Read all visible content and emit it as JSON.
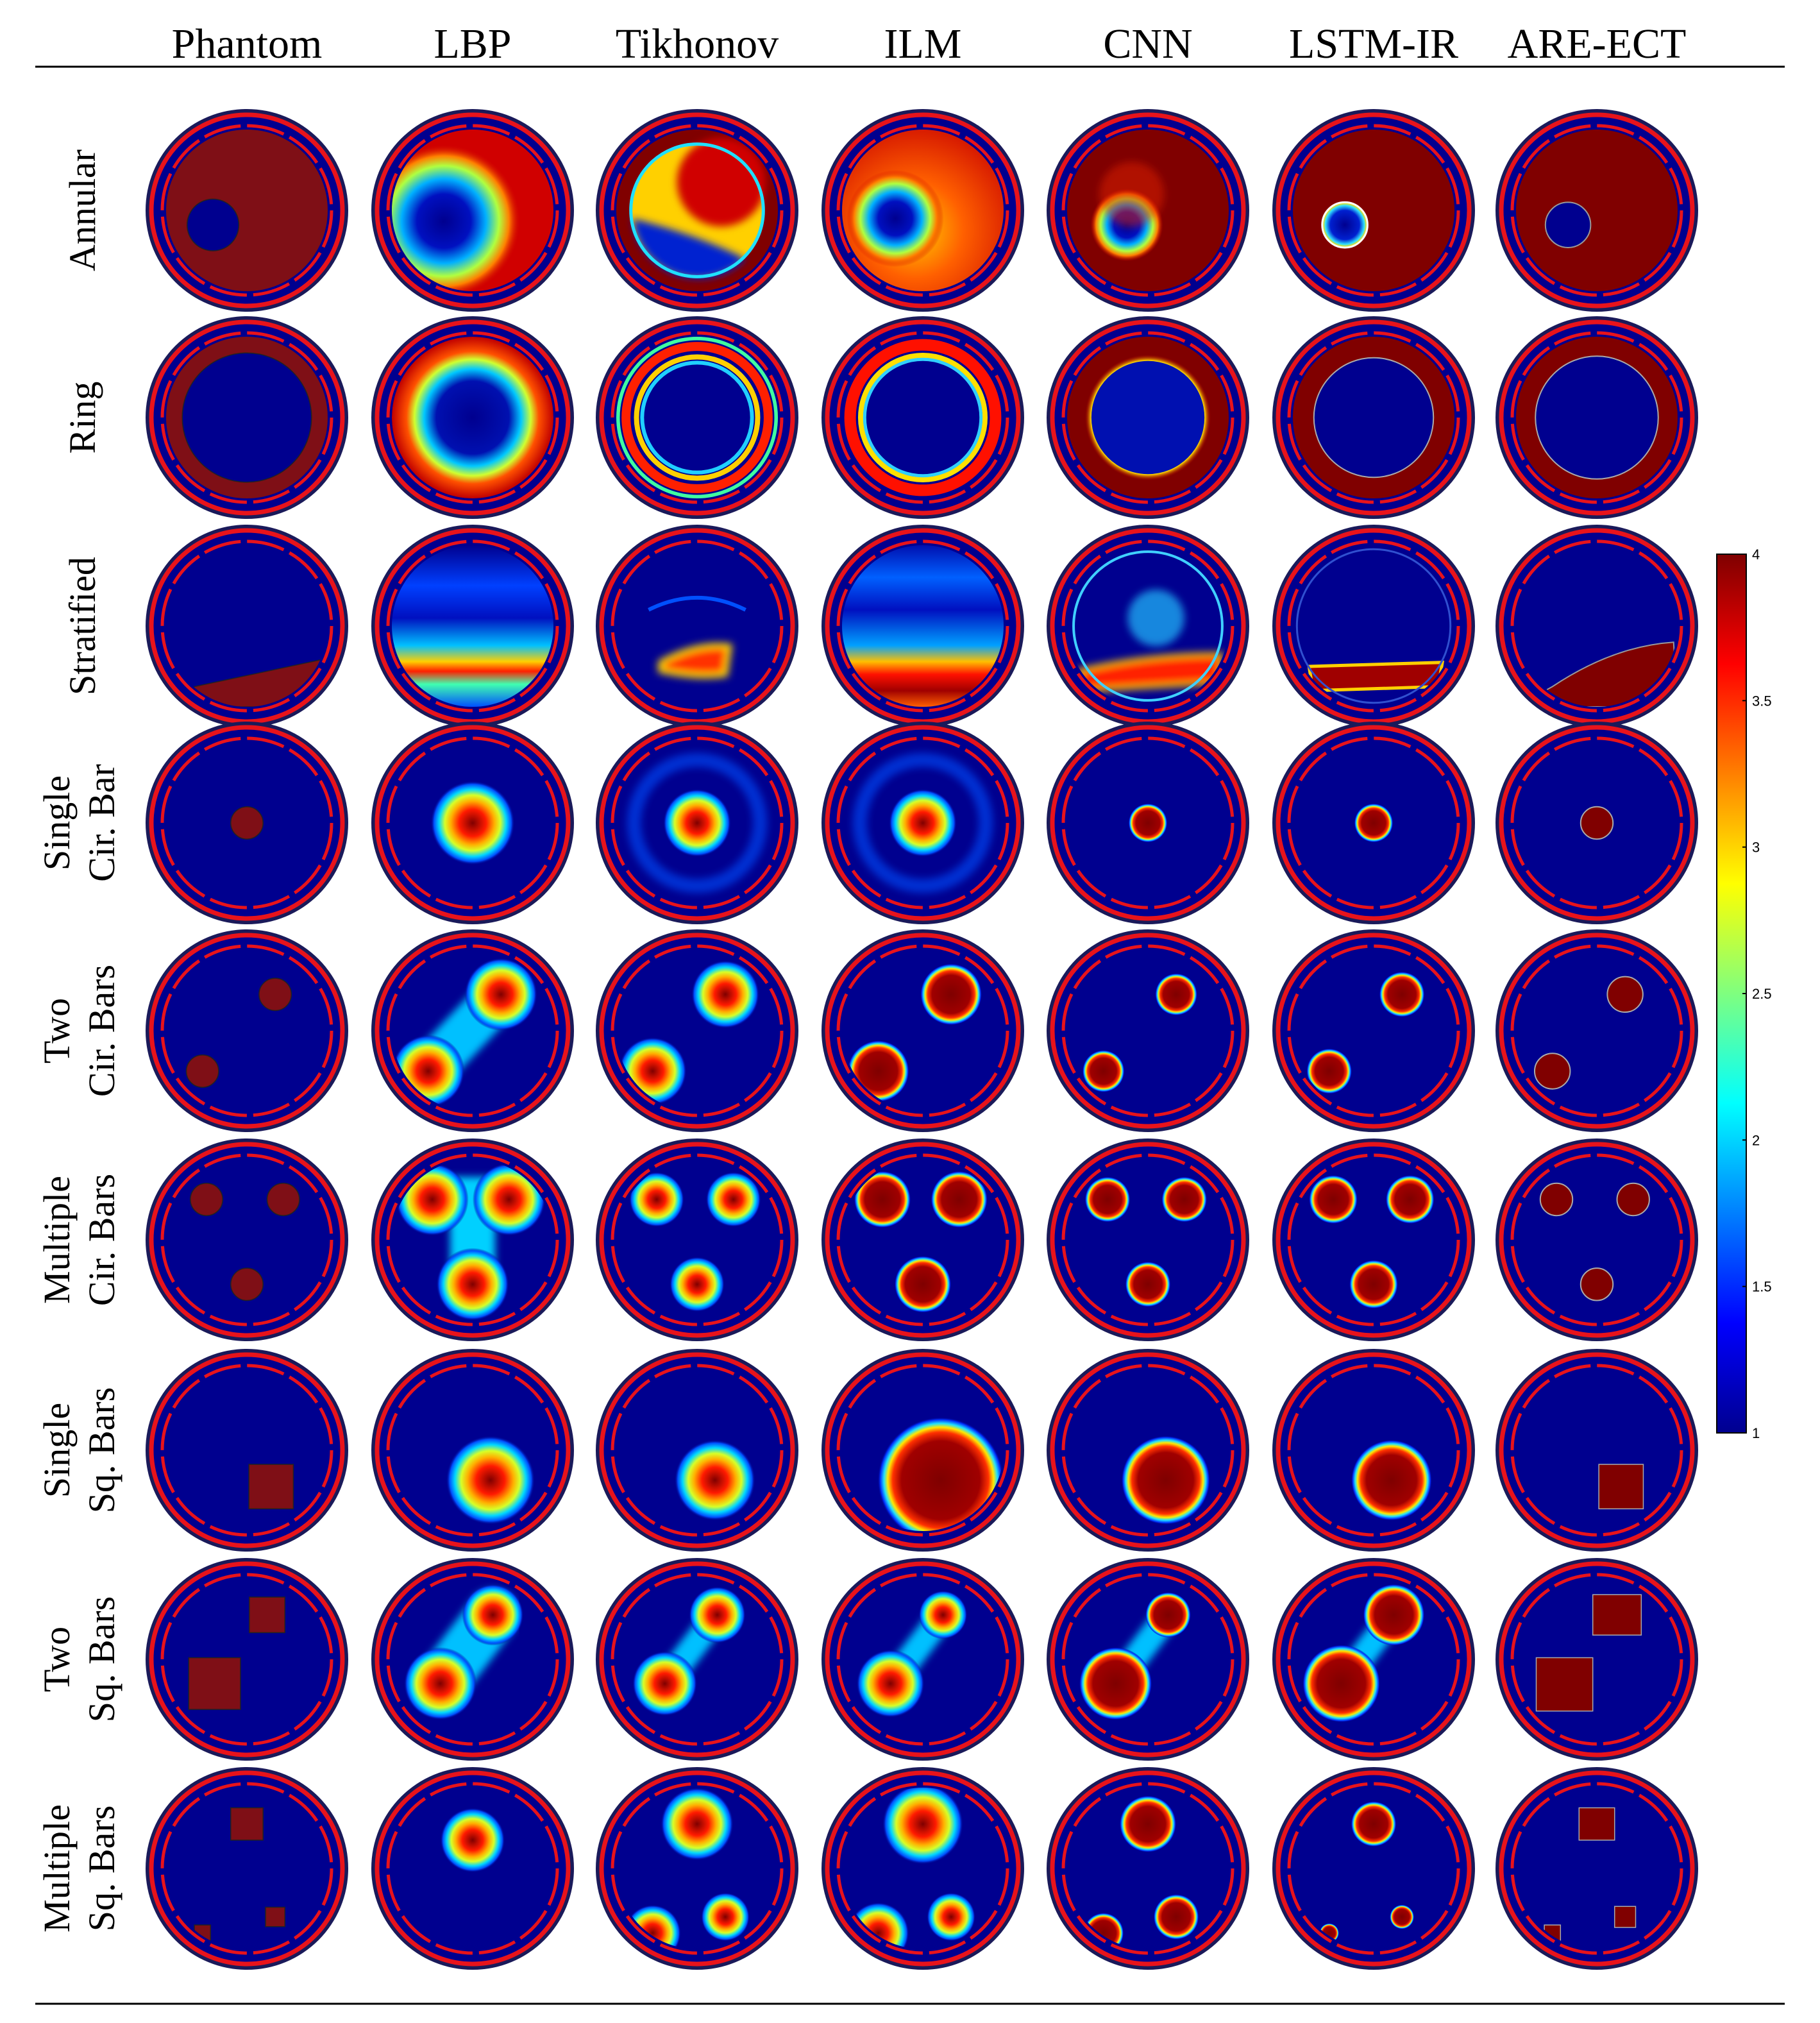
{
  "figure": {
    "columns": [
      "Phantom",
      "LBP",
      "Tikhonov",
      "ILM",
      "CNN",
      "LSTM-IR",
      "ARE-ECT"
    ],
    "rows": [
      {
        "id": "annular",
        "label": [
          "Annular"
        ]
      },
      {
        "id": "ring",
        "label": [
          "Ring"
        ]
      },
      {
        "id": "stratified",
        "label": [
          "Stratified"
        ]
      },
      {
        "id": "single-cir",
        "label": [
          "Single",
          "Cir. Bar"
        ]
      },
      {
        "id": "two-cir",
        "label": [
          "Two",
          "Cir. Bars"
        ]
      },
      {
        "id": "multi-cir",
        "label": [
          "Multiple",
          "Cir. Bars"
        ]
      },
      {
        "id": "single-sq",
        "label": [
          "Single",
          "Sq. Bars"
        ]
      },
      {
        "id": "two-sq",
        "label": [
          "Two",
          "Sq. Bars"
        ]
      },
      {
        "id": "multi-sq",
        "label": [
          "Multiple",
          "Sq. Bars"
        ]
      }
    ],
    "colorbar": {
      "min": 1,
      "max": 4,
      "tick_labels": [
        "4",
        "3.5",
        "3",
        "2.5",
        "2",
        "1.5",
        "1"
      ],
      "colormap": "jet"
    },
    "colors": {
      "sensor_ring": "#e8131b",
      "low": "#00008f",
      "high": "#800000",
      "phantom_high": "#7f0f16"
    }
  }
}
